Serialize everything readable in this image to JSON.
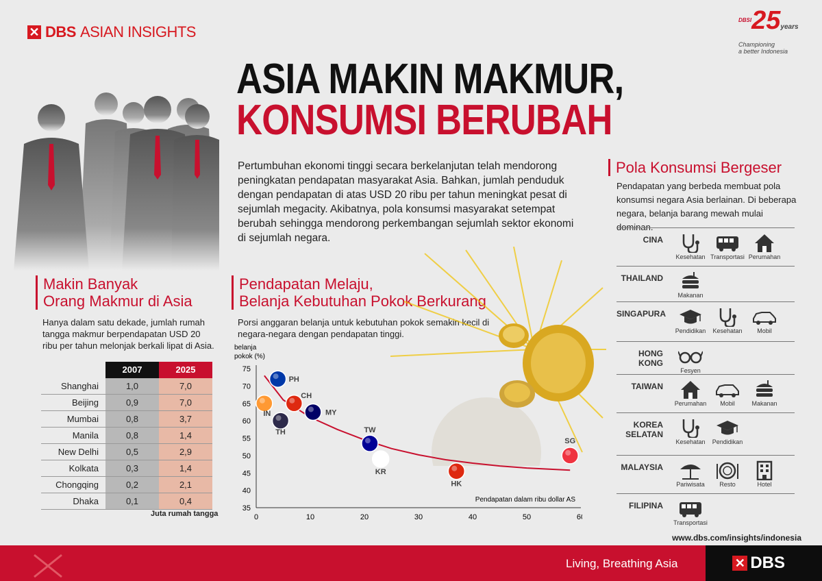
{
  "header": {
    "brand_bold": "DBS",
    "brand_rest": "ASIAN INSIGHTS",
    "anniv_small": "DBSI",
    "anniv_num": "25",
    "anniv_years": "years",
    "anniv_tag1": "Championing",
    "anniv_tag2": "a better Indonesia",
    "title_line1": "ASIA MAKIN MAKMUR,",
    "title_line2": "KONSUMSI BERUBAH",
    "intro": "Pertumbuhan ekonomi tinggi secara berkelanjutan telah mendorong peningkatan pendapatan masyarakat Asia. Bahkan, jumlah penduduk dengan pendapatan di atas USD 20 ribu per tahun meningkat pesat di sejumlah megacity. Akibatnya, pola konsumsi masyarakat setempat berubah sehingga mendorong perkembangan sejumlah sektor ekonomi di sejumlah negara."
  },
  "left": {
    "heading1": "Makin Banyak",
    "heading2": "Orang Makmur di Asia",
    "desc": "Hanya dalam satu dekade, jumlah rumah tangga makmur berpendapatan USD 20 ribu per tahun melonjak berkali lipat di Asia.",
    "col1": "2007",
    "col2": "2025",
    "rows": [
      {
        "city": "Shanghai",
        "v2007": "1,0",
        "v2025": "7,0"
      },
      {
        "city": "Beijing",
        "v2007": "0,9",
        "v2025": "7,0"
      },
      {
        "city": "Mumbai",
        "v2007": "0,8",
        "v2025": "3,7"
      },
      {
        "city": "Manila",
        "v2007": "0,8",
        "v2025": "1,4"
      },
      {
        "city": "New Delhi",
        "v2007": "0,5",
        "v2025": "2,9"
      },
      {
        "city": "Kolkata",
        "v2007": "0,3",
        "v2025": "1,4"
      },
      {
        "city": "Chongqing",
        "v2007": "0,2",
        "v2025": "2,1"
      },
      {
        "city": "Dhaka",
        "v2007": "0,1",
        "v2025": "0,4"
      }
    ],
    "note": "Juta rumah tangga"
  },
  "middle": {
    "heading1": "Pendapatan Melaju,",
    "heading2": "Belanja Kebutuhan Pokok Berkurang",
    "desc": "Porsi anggaran belanja untuk kebutuhan pokok semakin kecil di negara-negara dengan pendapatan tinggi."
  },
  "chart_data": {
    "type": "scatter",
    "ylabel_line1": "belanja",
    "ylabel_line2": "pokok (%)",
    "xlabel": "Pendapatan dalam ribu dollar AS",
    "xlim": [
      0,
      60
    ],
    "ylim": [
      35,
      75
    ],
    "xticks": [
      0,
      10,
      20,
      30,
      40,
      50,
      60
    ],
    "yticks": [
      35,
      40,
      45,
      50,
      55,
      60,
      65,
      70,
      75
    ],
    "points": [
      {
        "label": "PH",
        "x": 4,
        "y": 72,
        "color": "#0038a8"
      },
      {
        "label": "IN",
        "x": 1.5,
        "y": 65,
        "color": "#ff9933"
      },
      {
        "label": "CH",
        "x": 7,
        "y": 65,
        "color": "#de2910"
      },
      {
        "label": "MY",
        "x": 10.5,
        "y": 62.5,
        "color": "#010066"
      },
      {
        "label": "TH",
        "x": 4.5,
        "y": 60,
        "color": "#2d2a4a"
      },
      {
        "label": "TW",
        "x": 21,
        "y": 53.5,
        "color": "#000095"
      },
      {
        "label": "KR",
        "x": 23,
        "y": 49,
        "color": "#ffffff"
      },
      {
        "label": "HK",
        "x": 37,
        "y": 45.5,
        "color": "#de2910"
      },
      {
        "label": "SG",
        "x": 58,
        "y": 50,
        "color": "#ef3340"
      }
    ],
    "trend": [
      [
        1.5,
        73
      ],
      [
        5,
        66
      ],
      [
        10,
        61
      ],
      [
        15,
        57.5
      ],
      [
        20,
        54.5
      ],
      [
        25,
        52
      ],
      [
        30,
        50.2
      ],
      [
        35,
        48.8
      ],
      [
        40,
        47.8
      ],
      [
        45,
        47
      ],
      [
        50,
        46.4
      ],
      [
        58,
        45.8
      ]
    ]
  },
  "right": {
    "heading": "Pola Konsumsi Bergeser",
    "desc": "Pendapatan yang berbeda membuat pola konsumsi negara Asia berlainan. Di beberapa negara, belanja barang mewah mulai dominan.",
    "countries": [
      {
        "name": "CINA",
        "items": [
          {
            "icon": "stethoscope-icon",
            "label": "Kesehatan"
          },
          {
            "icon": "bus-icon",
            "label": "Transportasi"
          },
          {
            "icon": "house-icon",
            "label": "Perumahan"
          }
        ]
      },
      {
        "name": "THAILAND",
        "items": [
          {
            "icon": "food-icon",
            "label": "Makanan"
          }
        ]
      },
      {
        "name": "SINGAPURA",
        "items": [
          {
            "icon": "graduation-cap-icon",
            "label": "Pendidikan"
          },
          {
            "icon": "stethoscope-icon",
            "label": "Kesehatan"
          },
          {
            "icon": "car-icon",
            "label": "Mobil"
          }
        ]
      },
      {
        "name": "HONG KONG",
        "items": [
          {
            "icon": "glasses-icon",
            "label": "Fesyen"
          }
        ]
      },
      {
        "name": "TAIWAN",
        "items": [
          {
            "icon": "house-icon",
            "label": "Perumahan"
          },
          {
            "icon": "car-icon",
            "label": "Mobil"
          },
          {
            "icon": "food-icon",
            "label": "Makanan"
          }
        ]
      },
      {
        "name": "KOREA SELATAN",
        "items": [
          {
            "icon": "stethoscope-icon",
            "label": "Kesehatan"
          },
          {
            "icon": "graduation-cap-icon",
            "label": "Pendidikan"
          }
        ]
      },
      {
        "name": "MALAYSIA",
        "items": [
          {
            "icon": "umbrella-icon",
            "label": "Pariwisata"
          },
          {
            "icon": "restaurant-icon",
            "label": "Resto"
          },
          {
            "icon": "hotel-icon",
            "label": "Hotel"
          }
        ]
      },
      {
        "name": "FILIPINA",
        "items": [
          {
            "icon": "bus-icon",
            "label": "Transportasi"
          }
        ]
      }
    ]
  },
  "footer": {
    "url": "www.dbs.com/insights/indonesia",
    "slogan": "Living, Breathing Asia",
    "logo": "DBS"
  },
  "colors": {
    "accent": "#c8102e",
    "background": "#ebebeb",
    "dark": "#0d0d0d"
  }
}
